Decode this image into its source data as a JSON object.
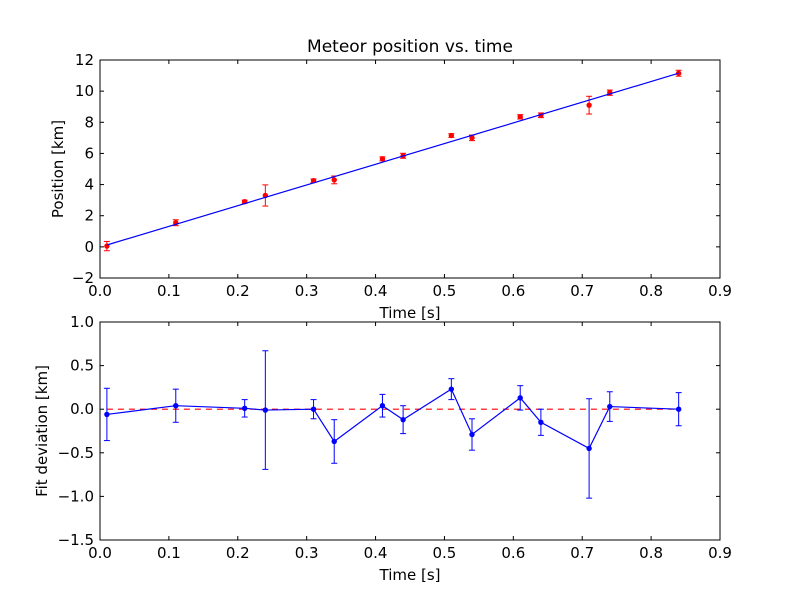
{
  "chart_data": [
    {
      "type": "scatter",
      "title": "Meteor position vs. time",
      "xlabel": "Time [s]",
      "ylabel": "Position [km]",
      "xlim": [
        0.0,
        0.9
      ],
      "ylim": [
        -2,
        12
      ],
      "xticks": [
        0.0,
        0.1,
        0.2,
        0.3,
        0.4,
        0.5,
        0.6,
        0.7,
        0.8,
        0.9
      ],
      "xtick_labels": [
        "0.0",
        "0.1",
        "0.2",
        "0.3",
        "0.4",
        "0.5",
        "0.6",
        "0.7",
        "0.8",
        "0.9"
      ],
      "yticks": [
        -2,
        0,
        2,
        4,
        6,
        8,
        10,
        12
      ],
      "ytick_labels": [
        "−2",
        "0",
        "2",
        "4",
        "6",
        "8",
        "10",
        "12"
      ],
      "grid": false,
      "series": [
        {
          "kind": "errorbar-points",
          "color": "#ff0000",
          "x": [
            0.01,
            0.11,
            0.21,
            0.24,
            0.31,
            0.34,
            0.41,
            0.44,
            0.51,
            0.54,
            0.61,
            0.64,
            0.71,
            0.74,
            0.84
          ],
          "y": [
            0.05,
            1.55,
            2.9,
            3.3,
            4.25,
            4.3,
            5.65,
            5.85,
            7.15,
            7.0,
            8.35,
            8.45,
            9.1,
            9.9,
            11.15
          ],
          "yerr": [
            0.3,
            0.19,
            0.1,
            0.68,
            0.11,
            0.25,
            0.13,
            0.16,
            0.12,
            0.18,
            0.14,
            0.15,
            0.57,
            0.17,
            0.19
          ]
        },
        {
          "kind": "fit-line",
          "color": "#0000ff",
          "x": [
            0.01,
            0.84
          ],
          "y": [
            0.12,
            11.15
          ]
        }
      ]
    },
    {
      "type": "line",
      "title": "",
      "xlabel": "Time [s]",
      "ylabel": "Fit deviation [km]",
      "xlim": [
        0.0,
        0.9
      ],
      "ylim": [
        -1.5,
        1.0
      ],
      "xticks": [
        0.0,
        0.1,
        0.2,
        0.3,
        0.4,
        0.5,
        0.6,
        0.7,
        0.8,
        0.9
      ],
      "xtick_labels": [
        "0.0",
        "0.1",
        "0.2",
        "0.3",
        "0.4",
        "0.5",
        "0.6",
        "0.7",
        "0.8",
        "0.9"
      ],
      "yticks": [
        -1.5,
        -1.0,
        -0.5,
        0.0,
        0.5,
        1.0
      ],
      "ytick_labels": [
        "−1.5",
        "−1.0",
        "−0.5",
        "0.0",
        "0.5",
        "1.0"
      ],
      "grid": false,
      "reference_line": {
        "y": 0.0,
        "color": "#ff0000",
        "style": "dashed"
      },
      "series": [
        {
          "kind": "errorbar-line",
          "color": "#0000ff",
          "x": [
            0.01,
            0.11,
            0.21,
            0.24,
            0.31,
            0.34,
            0.41,
            0.44,
            0.51,
            0.54,
            0.61,
            0.64,
            0.71,
            0.74,
            0.84
          ],
          "y": [
            -0.06,
            0.04,
            0.01,
            -0.01,
            0.0,
            -0.37,
            0.04,
            -0.12,
            0.23,
            -0.29,
            0.13,
            -0.15,
            -0.45,
            0.03,
            0.0
          ],
          "yerr": [
            0.3,
            0.19,
            0.1,
            0.68,
            0.11,
            0.25,
            0.13,
            0.16,
            0.12,
            0.18,
            0.14,
            0.15,
            0.57,
            0.17,
            0.19
          ]
        }
      ]
    }
  ]
}
